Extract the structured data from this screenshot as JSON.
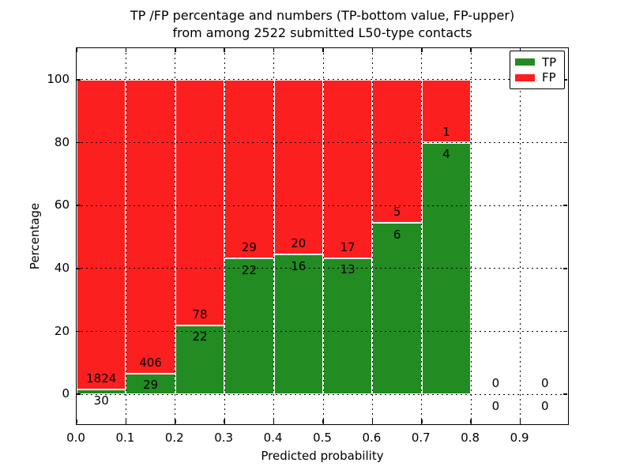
{
  "title": {
    "line1": "TP /FP percentage and numbers (TP-bottom value, FP-upper)",
    "line2": "from among 2522 submitted L50-type contacts"
  },
  "axes": {
    "xlabel": "Predicted probability",
    "ylabel": "Percentage",
    "xticks": [
      "0.0",
      "0.1",
      "0.2",
      "0.3",
      "0.4",
      "0.5",
      "0.6",
      "0.7",
      "0.8",
      "0.9"
    ],
    "yticks": [
      "0",
      "20",
      "40",
      "60",
      "80",
      "100"
    ],
    "xlim": [
      0.0,
      1.0
    ],
    "ylim": [
      -10,
      110
    ],
    "grid_style": "dotted"
  },
  "legend": {
    "position": "upper right",
    "items": [
      {
        "label": "TP",
        "color": "#228b22"
      },
      {
        "label": "FP",
        "color": "#fc1f1f"
      }
    ]
  },
  "chart_data": {
    "type": "bar",
    "stacked": true,
    "normalized_to_percent": 100,
    "title": "TP /FP percentage and numbers (TP-bottom value, FP-upper) from among 2522 submitted L50-type contacts",
    "xlabel": "Predicted probability",
    "ylabel": "Percentage",
    "total_submitted_contacts": 2522,
    "contact_type": "L50",
    "bin_edges": [
      0.0,
      0.1,
      0.2,
      0.3,
      0.4,
      0.5,
      0.6,
      0.7,
      0.8,
      0.9,
      1.0
    ],
    "series": [
      {
        "name": "TP",
        "color": "#228b22",
        "counts": [
          30,
          29,
          22,
          22,
          16,
          13,
          6,
          4,
          0,
          0
        ]
      },
      {
        "name": "FP",
        "color": "#fc1f1f",
        "counts": [
          1824,
          406,
          78,
          29,
          20,
          17,
          5,
          1,
          0,
          0
        ]
      }
    ],
    "tp_percent_per_bin": [
      1.62,
      6.67,
      22.0,
      43.14,
      44.44,
      43.33,
      54.55,
      80.0,
      0.0,
      0.0
    ],
    "annotation_note": "FP count printed above TP/FP boundary, TP count printed below it"
  }
}
